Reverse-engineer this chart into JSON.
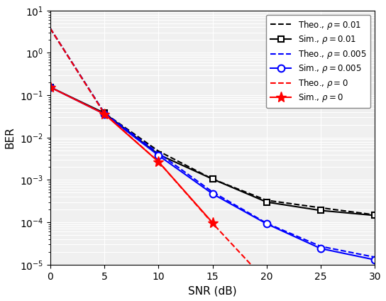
{
  "snr": [
    0,
    5,
    10,
    15,
    20,
    25,
    30
  ],
  "theo_rho_001": [
    3.8,
    0.038,
    0.0048,
    0.00105,
    0.00033,
    0.00022,
    0.00015
  ],
  "sim_rho_001": [
    0.155,
    0.038,
    0.004,
    0.00105,
    0.0003,
    0.00019,
    0.000145
  ],
  "theo_rho_0005": [
    3.8,
    0.038,
    0.0043,
    0.00052,
    9.5e-05,
    2.7e-05,
    1.5e-05
  ],
  "sim_rho_0005": [
    0.155,
    0.036,
    0.0038,
    0.00047,
    9.2e-05,
    2.4e-05,
    1.3e-05
  ],
  "theo_rho_0": [
    3.8,
    0.037,
    0.0027,
    9.5e-05,
    4e-06,
    null,
    null
  ],
  "sim_rho_0": [
    0.155,
    0.036,
    0.0027,
    9.8e-05,
    null,
    null,
    null
  ],
  "color_black": "#000000",
  "color_blue": "#0000ff",
  "color_red": "#ff0000",
  "xlabel": "SNR (dB)",
  "ylabel": "BER",
  "ylim_bottom": 1e-05,
  "ylim_top": 10,
  "xlim_left": 0,
  "xlim_right": 30,
  "bg_color": "#f0f0f0",
  "grid_color": "#ffffff",
  "legend_labels": [
    "Theo., $\\rho = 0.01$",
    "Sim., $\\rho = 0.01$",
    "Theo., $\\rho = 0.005$",
    "Sim., $\\rho = 0.005$",
    "Theo., $\\rho = 0$",
    "Sim., $\\rho = 0$"
  ]
}
